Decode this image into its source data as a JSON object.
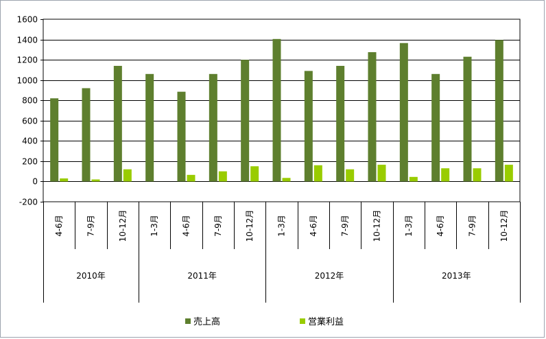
{
  "chart_data": {
    "type": "bar",
    "categories": [
      "4-6月",
      "7-9月",
      "10-12月",
      "1-3月",
      "4-6月",
      "7-9月",
      "10-12月",
      "1-3月",
      "4-6月",
      "7-9月",
      "10-12月",
      "1-3月",
      "4-6月",
      "7-9月",
      "10-12月"
    ],
    "groups": [
      {
        "label": "2010年",
        "count": 3
      },
      {
        "label": "2011年",
        "count": 4
      },
      {
        "label": "2012年",
        "count": 4
      },
      {
        "label": "2013年",
        "count": 4
      }
    ],
    "series": [
      {
        "name": "売上高",
        "color": "#5e7f2e",
        "values": [
          820,
          920,
          1140,
          1060,
          885,
          1060,
          1200,
          1405,
          1090,
          1140,
          1275,
          1365,
          1060,
          1230,
          1395
        ]
      },
      {
        "name": "営業利益",
        "color": "#99cc00",
        "values": [
          30,
          20,
          120,
          0,
          65,
          100,
          150,
          35,
          160,
          120,
          165,
          45,
          130,
          130,
          165
        ]
      }
    ],
    "ylim": [
      -200,
      1600
    ],
    "yticks": [
      -200,
      0,
      200,
      400,
      600,
      800,
      1000,
      1200,
      1400,
      1600
    ],
    "grid": true,
    "legend_position": "bottom"
  }
}
